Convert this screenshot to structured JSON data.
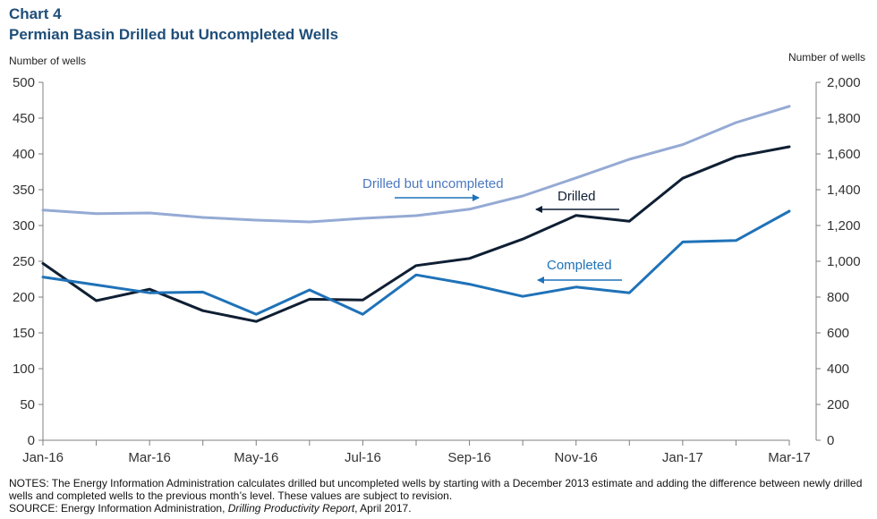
{
  "header": {
    "chart_number": "Chart 4",
    "title": "Permian Basin Drilled but Uncompleted Wells"
  },
  "colors": {
    "drilled": "#0f1f33",
    "completed": "#1f72b8",
    "duc": "#95aad4",
    "axis": "#7f7f7f",
    "title": "#1f4e79"
  },
  "chart_data": {
    "type": "line",
    "x": [
      "Jan-16",
      "Feb-16",
      "Mar-16",
      "Apr-16",
      "May-16",
      "Jun-16",
      "Jul-16",
      "Aug-16",
      "Sep-16",
      "Oct-16",
      "Nov-16",
      "Dec-16",
      "Jan-17",
      "Feb-17",
      "Mar-17"
    ],
    "x_tick_labels": [
      "Jan-16",
      "Mar-16",
      "May-16",
      "Jul-16",
      "Sep-16",
      "Nov-16",
      "Jan-17",
      "Mar-17"
    ],
    "ylabel_left": "Number of wells",
    "ylabel_right": "Number of wells",
    "ylim_left": [
      0,
      500
    ],
    "ylim_right": [
      0,
      2000
    ],
    "y_ticks_left": [
      "0",
      "50",
      "100",
      "150",
      "200",
      "250",
      "300",
      "350",
      "400",
      "450",
      "500"
    ],
    "y_ticks_right": [
      "0",
      "200",
      "400",
      "600",
      "800",
      "1,000",
      "1,200",
      "1,400",
      "1,600",
      "1,800",
      "2,000"
    ],
    "grid": false,
    "series": [
      {
        "name": "Drilled",
        "axis": "left",
        "values": [
          247,
          195,
          211,
          181,
          166,
          197,
          196,
          244,
          254,
          281,
          314,
          306,
          366,
          396,
          410
        ]
      },
      {
        "name": "Completed",
        "axis": "left",
        "values": [
          228,
          217,
          206,
          207,
          176,
          210,
          176,
          231,
          218,
          201,
          214,
          206,
          277,
          279,
          320
        ]
      },
      {
        "name": "Drilled but uncompleted",
        "axis": "right",
        "values": [
          1286,
          1266,
          1270,
          1245,
          1230,
          1220,
          1240,
          1255,
          1291,
          1365,
          1466,
          1570,
          1652,
          1775,
          1866
        ]
      }
    ],
    "annotations": [
      "Drilled but uncompleted",
      "Drilled",
      "Completed"
    ]
  },
  "notes": {
    "notes_text": "NOTES: The Energy Information Administration calculates drilled but uncompleted wells by starting with a December 2013 estimate and adding the difference between newly drilled wells and completed wells to the previous month’s level. These values are subject to revision.",
    "source_prefix": "SOURCE: Energy Information Administration, ",
    "source_title": "Drilling Productivity Report",
    "source_suffix": ", April 2017."
  }
}
